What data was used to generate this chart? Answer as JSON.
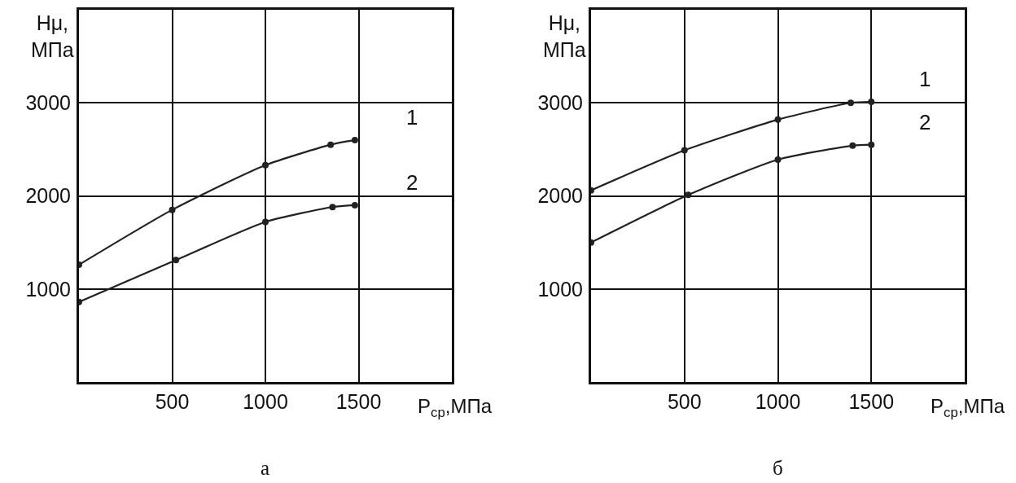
{
  "chart_data": [
    {
      "type": "line",
      "title": "а",
      "xlabel": "P$_{ср}$,МПа",
      "ylabel": "Hμ,\nМПа",
      "series": [
        {
          "name": "1",
          "color": "#222222",
          "x": [
            0,
            500,
            1000,
            1350,
            1480
          ],
          "values": [
            1260,
            1850,
            2330,
            2550,
            2600
          ]
        },
        {
          "name": "2",
          "color": "#222222",
          "x": [
            0,
            520,
            1000,
            1360,
            1480
          ],
          "values": [
            860,
            1310,
            1720,
            1880,
            1900
          ]
        }
      ],
      "xlim": [
        0,
        2000
      ],
      "xticks": [
        500,
        1000,
        1500
      ],
      "ylim": [
        0,
        4000
      ],
      "yticks": [
        1000,
        2000,
        3000
      ],
      "grid": true,
      "marker": "circle",
      "line_style": "solid"
    },
    {
      "type": "line",
      "title": "б",
      "xlabel": "P$_{ср}$,МПа",
      "ylabel": "Hμ,\nМПа",
      "series": [
        {
          "name": "1",
          "color": "#222222",
          "x": [
            0,
            500,
            1000,
            1390,
            1500
          ],
          "values": [
            2060,
            2490,
            2820,
            3000,
            3010
          ]
        },
        {
          "name": "2",
          "color": "#222222",
          "x": [
            0,
            520,
            1000,
            1400,
            1500
          ],
          "values": [
            1500,
            2010,
            2390,
            2540,
            2550
          ]
        }
      ],
      "xlim": [
        0,
        2000
      ],
      "xticks": [
        500,
        1000,
        1500
      ],
      "ylim": [
        0,
        4000
      ],
      "yticks": [
        1000,
        2000,
        3000
      ],
      "grid": true,
      "marker": "circle",
      "line_style": "solid"
    }
  ]
}
